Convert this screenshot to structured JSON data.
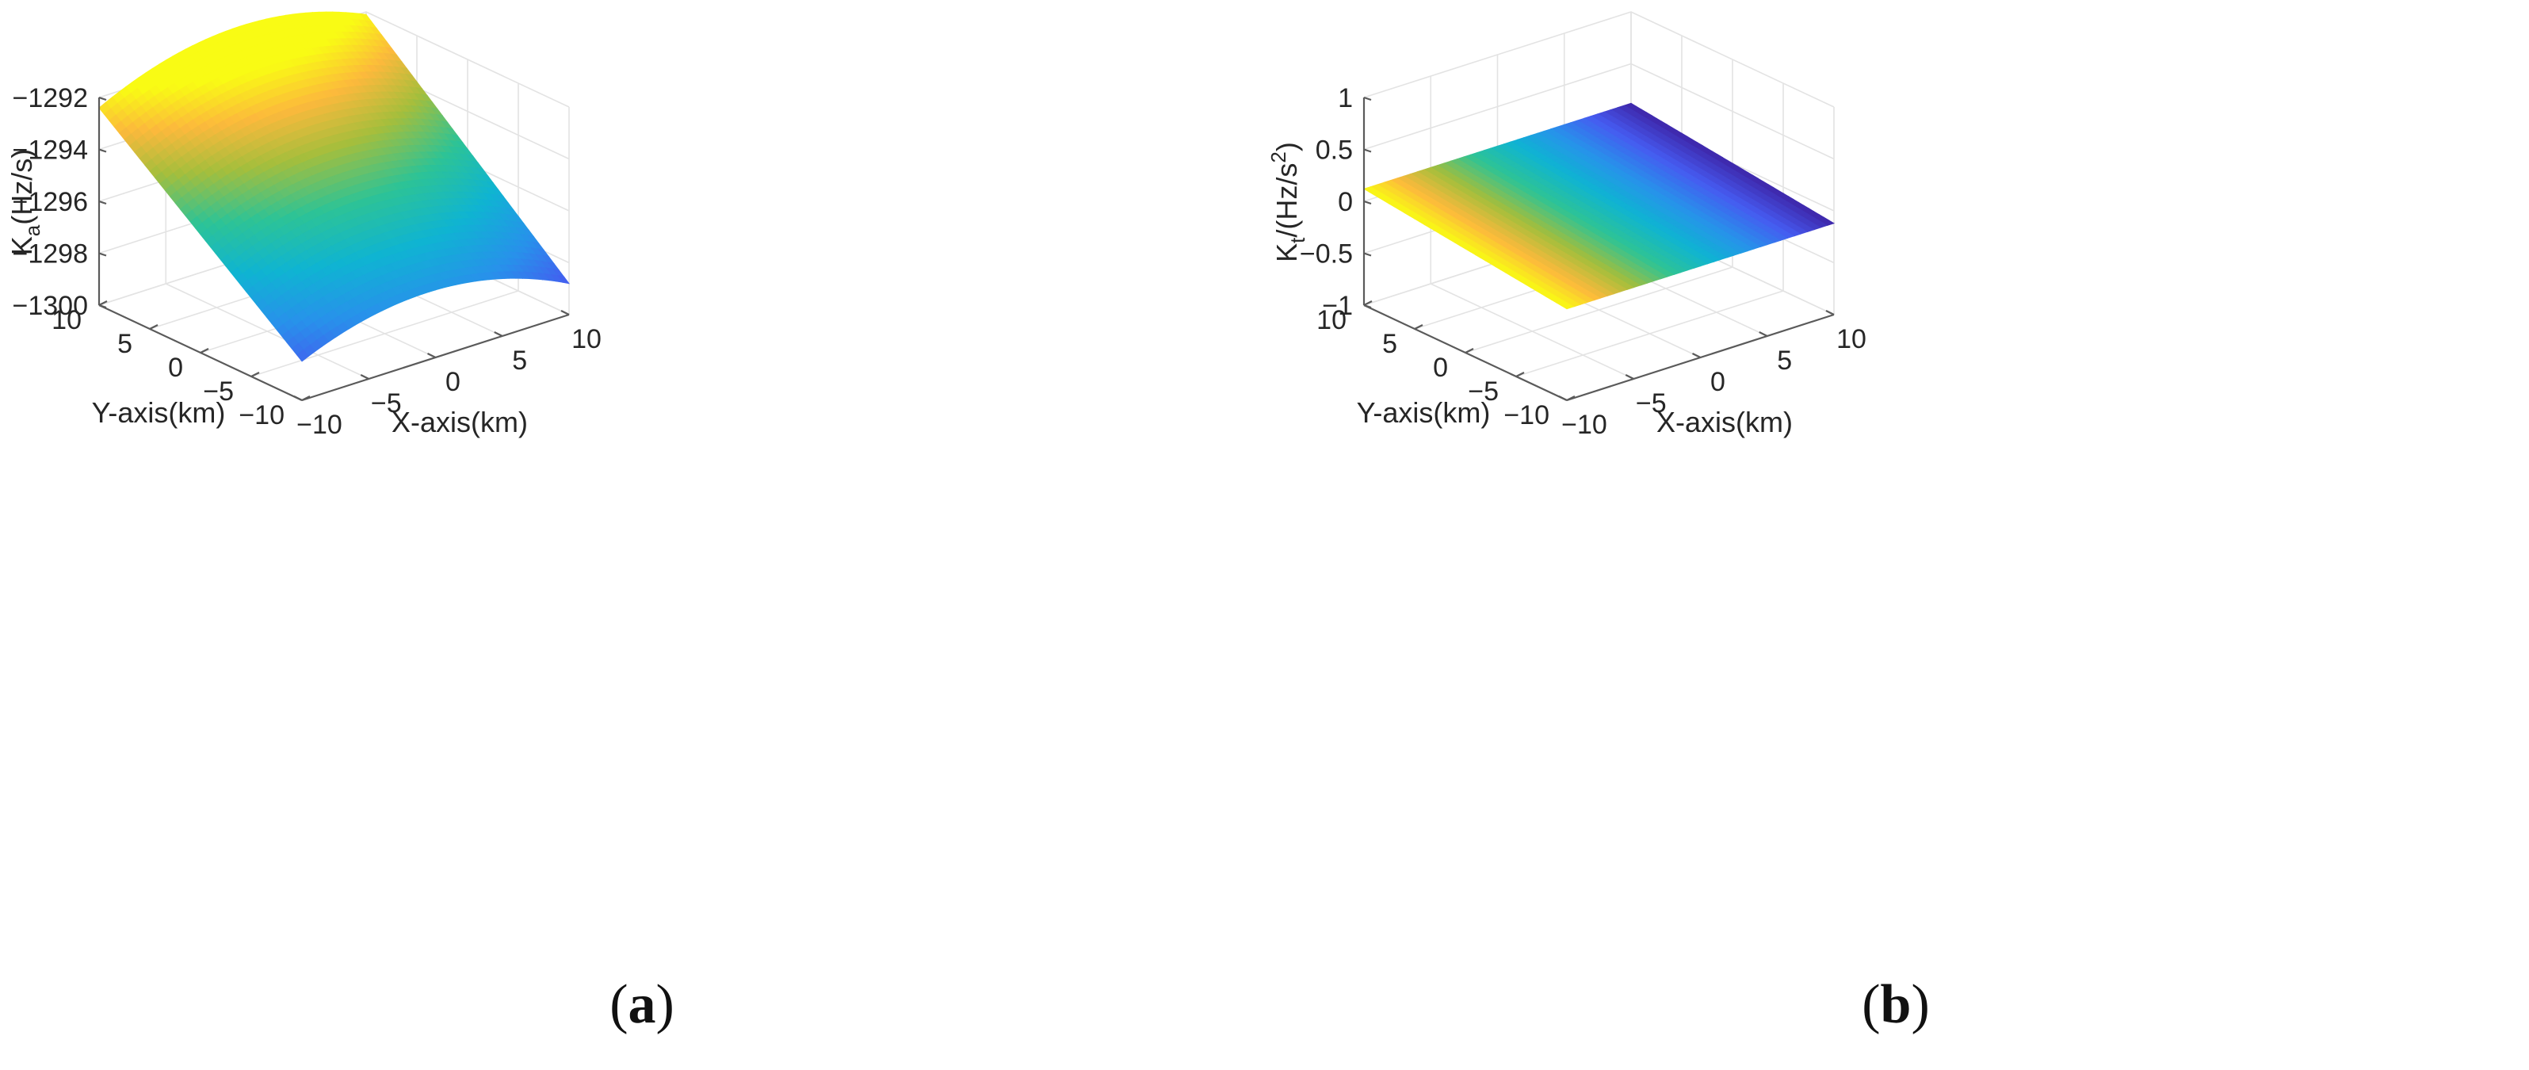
{
  "chart_data": [
    {
      "panel": "a",
      "type": "surface",
      "caption": "a",
      "xlabel": "X-axis(km)",
      "ylabel": "Y-axis(km)",
      "zlabel": {
        "base": "K",
        "sub": "a",
        "rest": "(Hz/s)"
      },
      "x_ticks": [
        -10,
        -5,
        0,
        5,
        10
      ],
      "y_ticks": [
        -10,
        -5,
        0,
        5,
        10
      ],
      "z_ticks": [
        -1300,
        -1298,
        -1296,
        -1294,
        -1292
      ],
      "z_tick_labels": [
        "−1300",
        "−1298",
        "−1296",
        "−1294",
        "−1292"
      ],
      "xlim": [
        -10,
        10
      ],
      "ylim": [
        -10,
        10
      ],
      "zlim": [
        -1300,
        -1292
      ],
      "grid": true,
      "colormap": "parula",
      "surface": {
        "x": [
          -10,
          -7.5,
          -5,
          -2.5,
          0,
          2.5,
          5,
          7.5,
          10
        ],
        "y": [
          -10,
          -7.5,
          -5,
          -2.5,
          0,
          2.5,
          5,
          7.5,
          10
        ],
        "corner_values": {
          "x-10_y-10": -1300.0,
          "x10_y-10": -1299.8,
          "x10_y10": -1292.3,
          "x-10_y10": -1293.4
        },
        "z_at_x0_y-10": -1297.5,
        "z_at_x0_y10": -1292.0
      }
    },
    {
      "panel": "b",
      "type": "surface",
      "caption": "b",
      "xlabel": "X-axis(km)",
      "ylabel": "Y-axis(km)",
      "zlabel": {
        "base": "K",
        "sub": "t",
        "rest": "/(Hz/s",
        "sup": "2",
        "close": ")"
      },
      "x_ticks": [
        -10,
        -5,
        0,
        5,
        10
      ],
      "y_ticks": [
        -10,
        -5,
        0,
        5,
        10
      ],
      "z_ticks": [
        -1,
        -0.5,
        0,
        0.5,
        1
      ],
      "z_tick_labels": [
        "−1",
        "−0.5",
        "0",
        "0.5",
        "1"
      ],
      "xlim": [
        -10,
        10
      ],
      "ylim": [
        -10,
        10
      ],
      "zlim": [
        -1,
        1
      ],
      "grid": true,
      "colormap": "parula",
      "surface": {
        "x": [
          -10,
          -5,
          0,
          5,
          10
        ],
        "y": [
          -10,
          -5,
          0,
          5,
          10
        ],
        "corner_values": {
          "x-10_y-10": -0.12,
          "x10_y-10": -0.12,
          "x10_y10": 0.12,
          "x-10_y10": 0.12
        }
      }
    }
  ]
}
